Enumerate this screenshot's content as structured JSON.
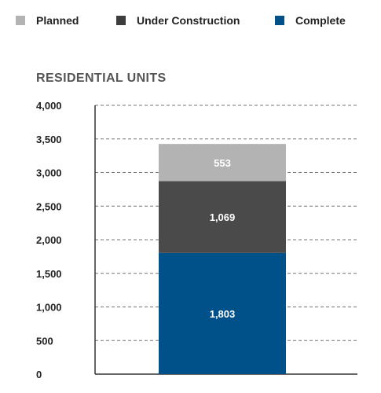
{
  "legend": [
    {
      "label": "Planned",
      "color": "#b3b3b3"
    },
    {
      "label": "Under Construction",
      "color": "#3d3d3d"
    },
    {
      "label": "Complete",
      "color": "#00508a"
    }
  ],
  "chart_data": {
    "type": "bar",
    "stacked": true,
    "title": "RESIDENTIAL UNITS",
    "categories": [
      ""
    ],
    "series": [
      {
        "name": "Complete",
        "values": [
          1803
        ],
        "color": "#00508a"
      },
      {
        "name": "Under Construction",
        "values": [
          1069
        ],
        "color": "#4a4a4a"
      },
      {
        "name": "Planned",
        "values": [
          553
        ],
        "color": "#b3b3b3"
      }
    ],
    "data_labels": [
      "1,803",
      "1,069",
      "553"
    ],
    "ylim": [
      0,
      4000
    ],
    "yticks": [
      0,
      500,
      1000,
      1500,
      2000,
      2500,
      3000,
      3500,
      4000
    ],
    "ytick_labels": [
      "0",
      "500",
      "1,000",
      "1,500",
      "2,000",
      "2,500",
      "3,000",
      "3,500",
      "4,000"
    ],
    "grid": true,
    "legend_position": "top"
  }
}
